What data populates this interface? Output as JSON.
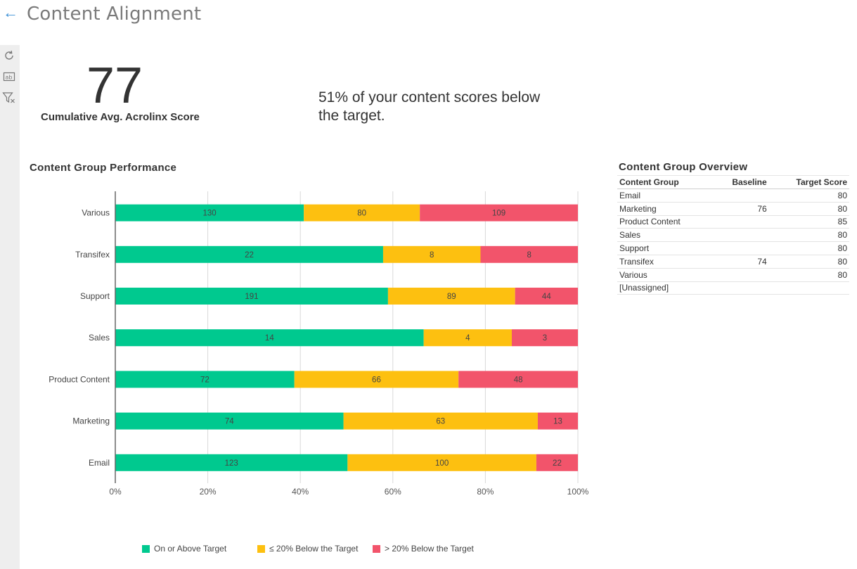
{
  "header": {
    "title": "Content Alignment",
    "back_icon": "arrow-left-icon"
  },
  "toolbar": {
    "items": [
      {
        "icon": "refresh-icon"
      },
      {
        "icon": "text-field-icon"
      },
      {
        "icon": "clear-filter-icon"
      }
    ]
  },
  "kpi": {
    "value": "77",
    "label": "Cumulative Avg. Acrolinx Score",
    "message": "51% of your content scores below the target."
  },
  "chart_data": {
    "type": "bar",
    "orientation": "horizontal",
    "stacked": "percent",
    "title": "Content Group Performance",
    "categories": [
      "Various",
      "Transifex",
      "Support",
      "Sales",
      "Product Content",
      "Marketing",
      "Email"
    ],
    "series": [
      {
        "name": "On or Above Target",
        "color": "#00c98f",
        "values": [
          130,
          22,
          191,
          14,
          72,
          74,
          123
        ]
      },
      {
        "name": "≤ 20% Below the Target",
        "color": "#fdc010",
        "values": [
          80,
          8,
          89,
          4,
          66,
          63,
          100
        ]
      },
      {
        "name": "> 20% Below the Target",
        "color": "#f2546b",
        "values": [
          109,
          8,
          44,
          3,
          48,
          13,
          22
        ]
      }
    ],
    "x_ticks": [
      "0%",
      "20%",
      "40%",
      "60%",
      "80%",
      "100%"
    ],
    "xlim": [
      0,
      100
    ],
    "grid": true,
    "legend": "bottom"
  },
  "overview": {
    "title": "Content Group Overview",
    "columns": [
      "Content Group",
      "Baseline",
      "Target Score"
    ],
    "rows": [
      [
        "Email",
        "",
        "80"
      ],
      [
        "Marketing",
        "76",
        "80"
      ],
      [
        "Product Content",
        "",
        "85"
      ],
      [
        "Sales",
        "",
        "80"
      ],
      [
        "Support",
        "",
        "80"
      ],
      [
        "Transifex",
        "74",
        "80"
      ],
      [
        "Various",
        "",
        "80"
      ],
      [
        "[Unassigned]",
        "",
        ""
      ]
    ]
  }
}
